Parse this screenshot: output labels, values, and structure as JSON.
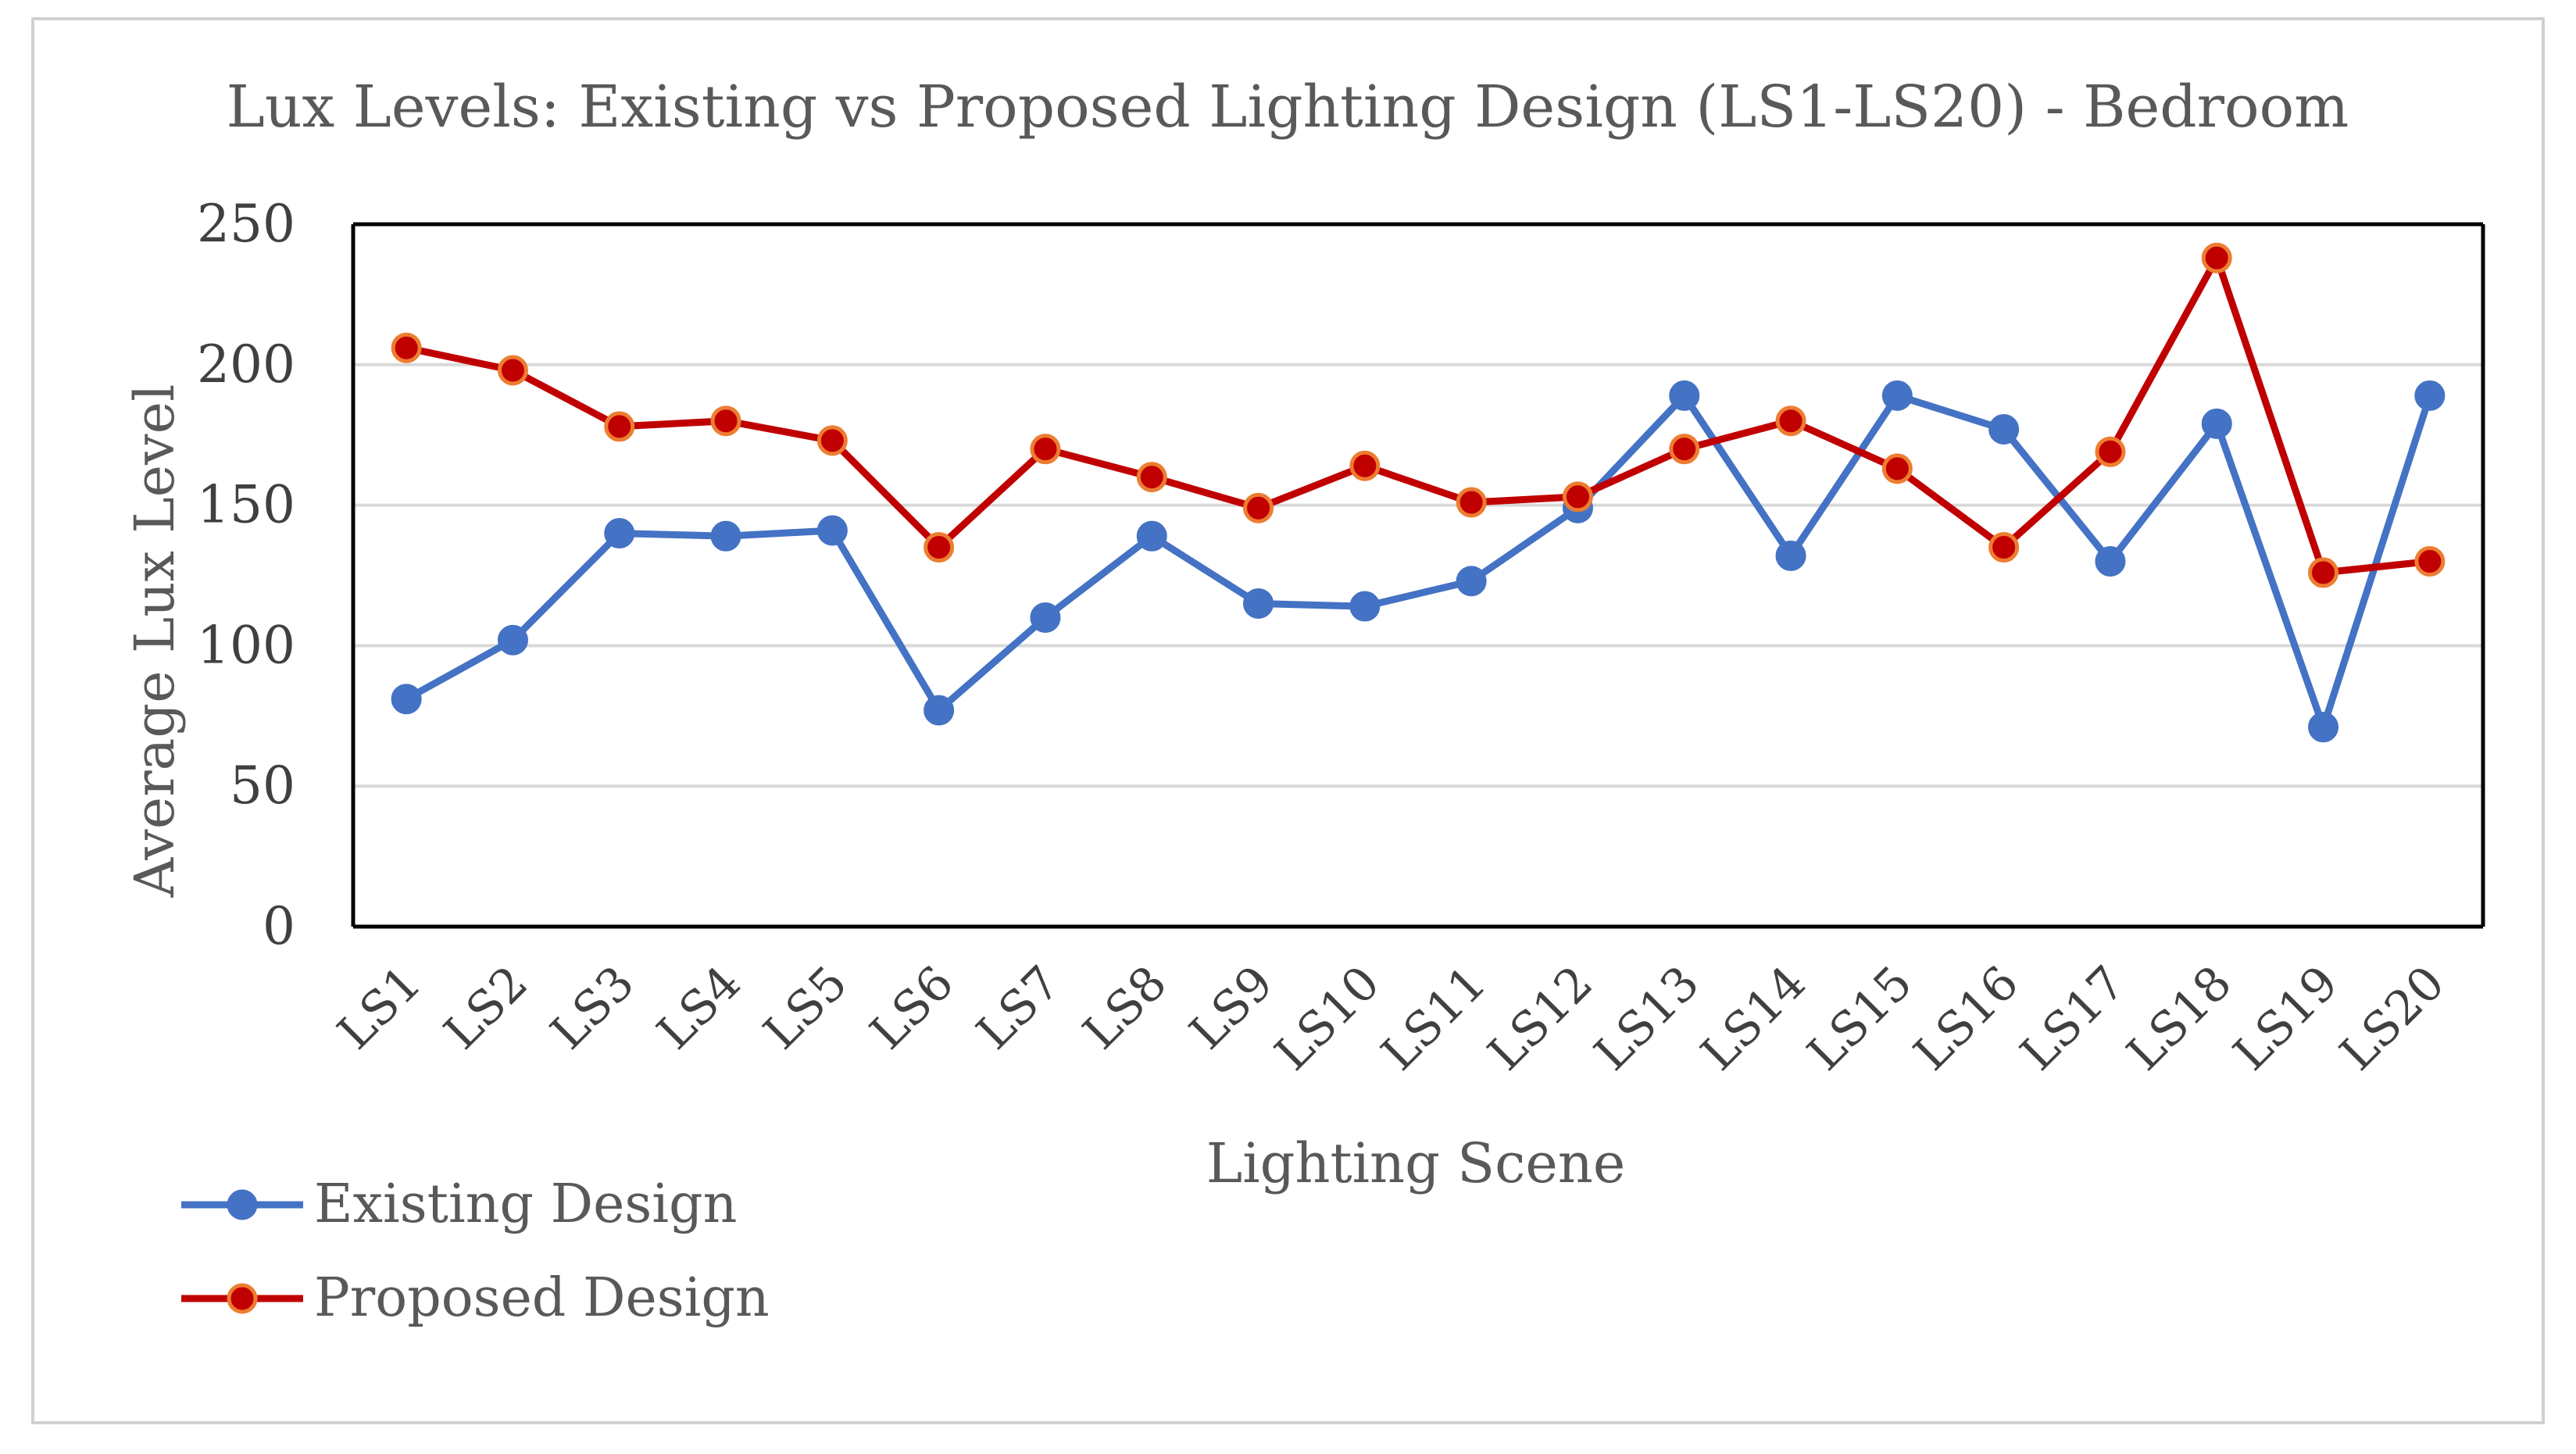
{
  "chart_data": {
    "type": "line",
    "title": "Lux Levels: Existing vs Proposed Lighting Design (LS1-LS20) - Bedroom",
    "xlabel": "Lighting Scene",
    "ylabel": "Average Lux Level",
    "ylim": [
      0,
      250
    ],
    "yticks": [
      "0",
      "50",
      "100",
      "150",
      "200",
      "250"
    ],
    "categories": [
      "LS1",
      "LS2",
      "LS3",
      "LS4",
      "LS5",
      "LS6",
      "LS7",
      "LS8",
      "LS9",
      "LS10",
      "LS11",
      "LS12",
      "LS13",
      "LS14",
      "LS15",
      "LS16",
      "LS17",
      "LS18",
      "LS19",
      "LS20"
    ],
    "grid": true,
    "legend_position": "bottom-left",
    "series": [
      {
        "name": "Existing Design",
        "color": "#4472c4",
        "marker_edge": "#4472c4",
        "values": [
          81,
          102,
          140,
          139,
          141,
          77,
          110,
          139,
          115,
          114,
          123,
          149,
          189,
          132,
          189,
          177,
          130,
          179,
          71,
          189
        ]
      },
      {
        "name": "Proposed Design",
        "color": "#c00000",
        "marker_edge": "#ed7d31",
        "values": [
          206,
          198,
          178,
          180,
          173,
          135,
          170,
          160,
          149,
          164,
          151,
          153,
          170,
          180,
          163,
          135,
          169,
          238,
          126,
          130
        ]
      }
    ]
  }
}
